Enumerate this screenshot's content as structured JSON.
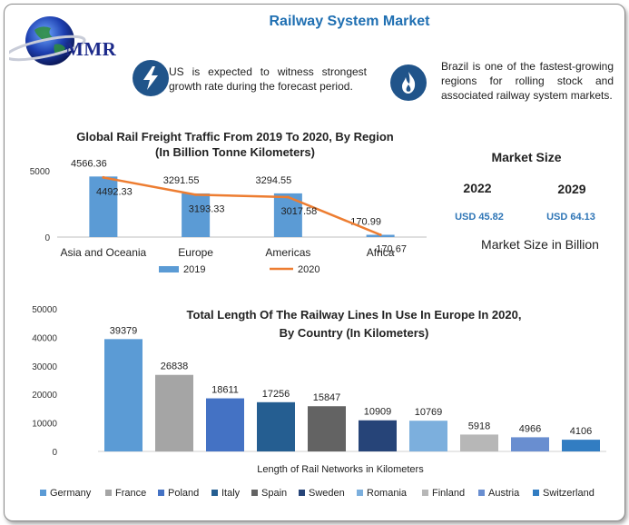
{
  "header": {
    "title": "Railway System Market",
    "logo_text": "MMR"
  },
  "facts": [
    {
      "icon": "lightning-icon",
      "text": "US is expected to witness strongest growth rate during the forecast period."
    },
    {
      "icon": "flame-icon",
      "text": "Brazil is one of the fastest-growing regions for rolling stock and associated railway system markets."
    }
  ],
  "market_size": {
    "title": "Market Size",
    "years": [
      "2022",
      "2029"
    ],
    "values": [
      "USD 45.82",
      "USD 64.13"
    ],
    "subtitle": "Market Size in Billion"
  },
  "colors": {
    "title_blue": "#1f6fb2",
    "bar_2019": "#5b9bd5",
    "line_2020": "#ed7d31",
    "badge": "#20548a"
  },
  "chart_data": [
    {
      "type": "bar",
      "title": "Global Rail Freight Traffic From 2019 To 2020, By Region",
      "subtitle": "(In Billion Tonne Kilometers)",
      "categories": [
        "Asia and Oceania",
        "Europe",
        "Americas",
        "Africa"
      ],
      "series": [
        {
          "name": "2019",
          "type": "bar",
          "color": "#5b9bd5",
          "values": [
            4566.36,
            3291.55,
            3294.55,
            170.99
          ],
          "labels": [
            "4566.36",
            "3291.55",
            "3294.55",
            "170.99"
          ]
        },
        {
          "name": "2020",
          "type": "line",
          "color": "#ed7d31",
          "values": [
            4492.33,
            3193.33,
            3017.58,
            170.67
          ],
          "labels": [
            "4492.33",
            "3193.33",
            "3017.58",
            "170.67"
          ]
        }
      ],
      "yticks": [
        "0",
        "5000"
      ],
      "ylim": [
        0,
        5000
      ],
      "legend": "bottom"
    },
    {
      "type": "bar",
      "title": "Total Length Of The Railway Lines In Use In Europe In 2020,",
      "subtitle": "By Country (In Kilometers)",
      "xlabel": "Length of Rail Networks in Kilometers",
      "categories": [
        "Germany",
        "France",
        "Poland",
        "Italy",
        "Spain",
        "Sweden",
        "Romania",
        "Finland",
        "Austria",
        "Switzerland"
      ],
      "values": [
        39379,
        26838,
        18611,
        17256,
        15847,
        10909,
        10769,
        5918,
        4966,
        4106
      ],
      "labels": [
        "39379",
        "26838",
        "18611",
        "17256",
        "15847",
        "10909",
        "10769",
        "5918",
        "4966",
        "4106"
      ],
      "colors": [
        "#5b9bd5",
        "#a5a5a5",
        "#4472c4",
        "#255e91",
        "#636363",
        "#264478",
        "#7cafdd",
        "#b7b7b7",
        "#698ed0",
        "#327dc2"
      ],
      "yticks": [
        "0",
        "10000",
        "20000",
        "30000",
        "40000",
        "50000"
      ],
      "ylim": [
        0,
        50000
      ],
      "legend": "bottom"
    }
  ]
}
